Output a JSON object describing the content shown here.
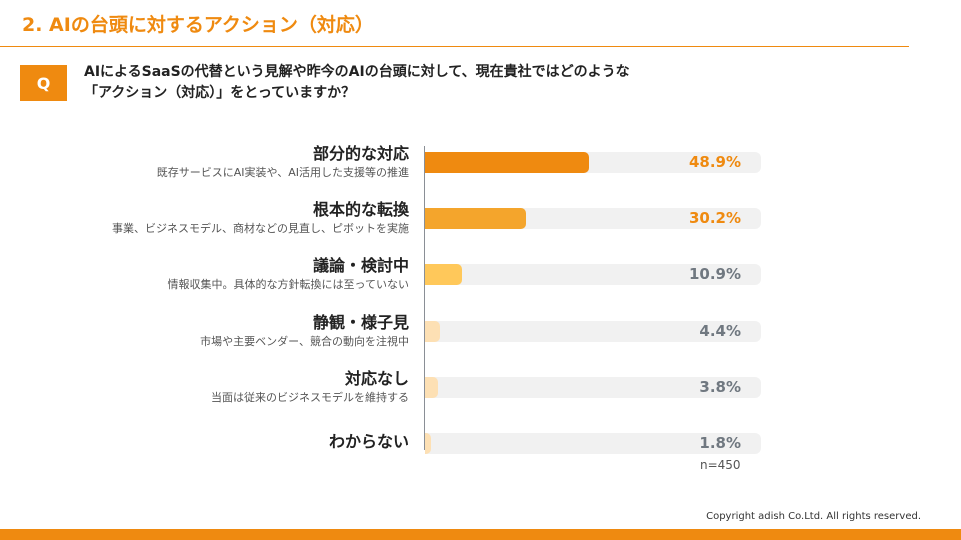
{
  "slide": {
    "title": "2. AIの台頭に対するアクション（対応）"
  },
  "question": {
    "badge": "Q",
    "line1": "AIによるSaaSの代替という見解や昨今のAIの台頭に対して、現在貴社ではどのような",
    "line2": "「アクション（対応）」をとっていますか？"
  },
  "chart_data": {
    "type": "bar",
    "orientation": "horizontal",
    "categories": [
      "部分的な対応",
      "根本的な転換",
      "議論・検討中",
      "静観・様子見",
      "対応なし",
      "わからない"
    ],
    "descriptions": [
      "既存サービスにAI実装や、AI活用した支援等の推進",
      "事業、ビジネスモデル、商材などの見直し、ピボットを実施",
      "情報収集中。具体的な方針転換には至っていない",
      "市場や主要ベンダー、競合の動向を注視中",
      "当面は従来のビジネスモデルを維持する",
      ""
    ],
    "values": [
      48.9,
      30.2,
      10.9,
      4.4,
      3.8,
      1.8
    ],
    "value_labels": [
      "48.9%",
      "30.2%",
      "10.9%",
      "4.4%",
      "3.8%",
      "1.8%"
    ],
    "unit": "%",
    "xlim": [
      0,
      100
    ],
    "colors": [
      "#ef8a10",
      "#f4a52c",
      "#ffc85a",
      "#fde0b4",
      "#fde0b4",
      "#fde0b4"
    ],
    "value_colors": [
      "#ef8a10",
      "#ef8a10",
      "#707880",
      "#707880",
      "#707880",
      "#707880"
    ],
    "track_color": "#f1f1f1",
    "sample_size": "n=450"
  },
  "footer": {
    "copyright": "Copyright adish Co.Ltd. All rights reserved.",
    "accent": "#ef8a10"
  }
}
